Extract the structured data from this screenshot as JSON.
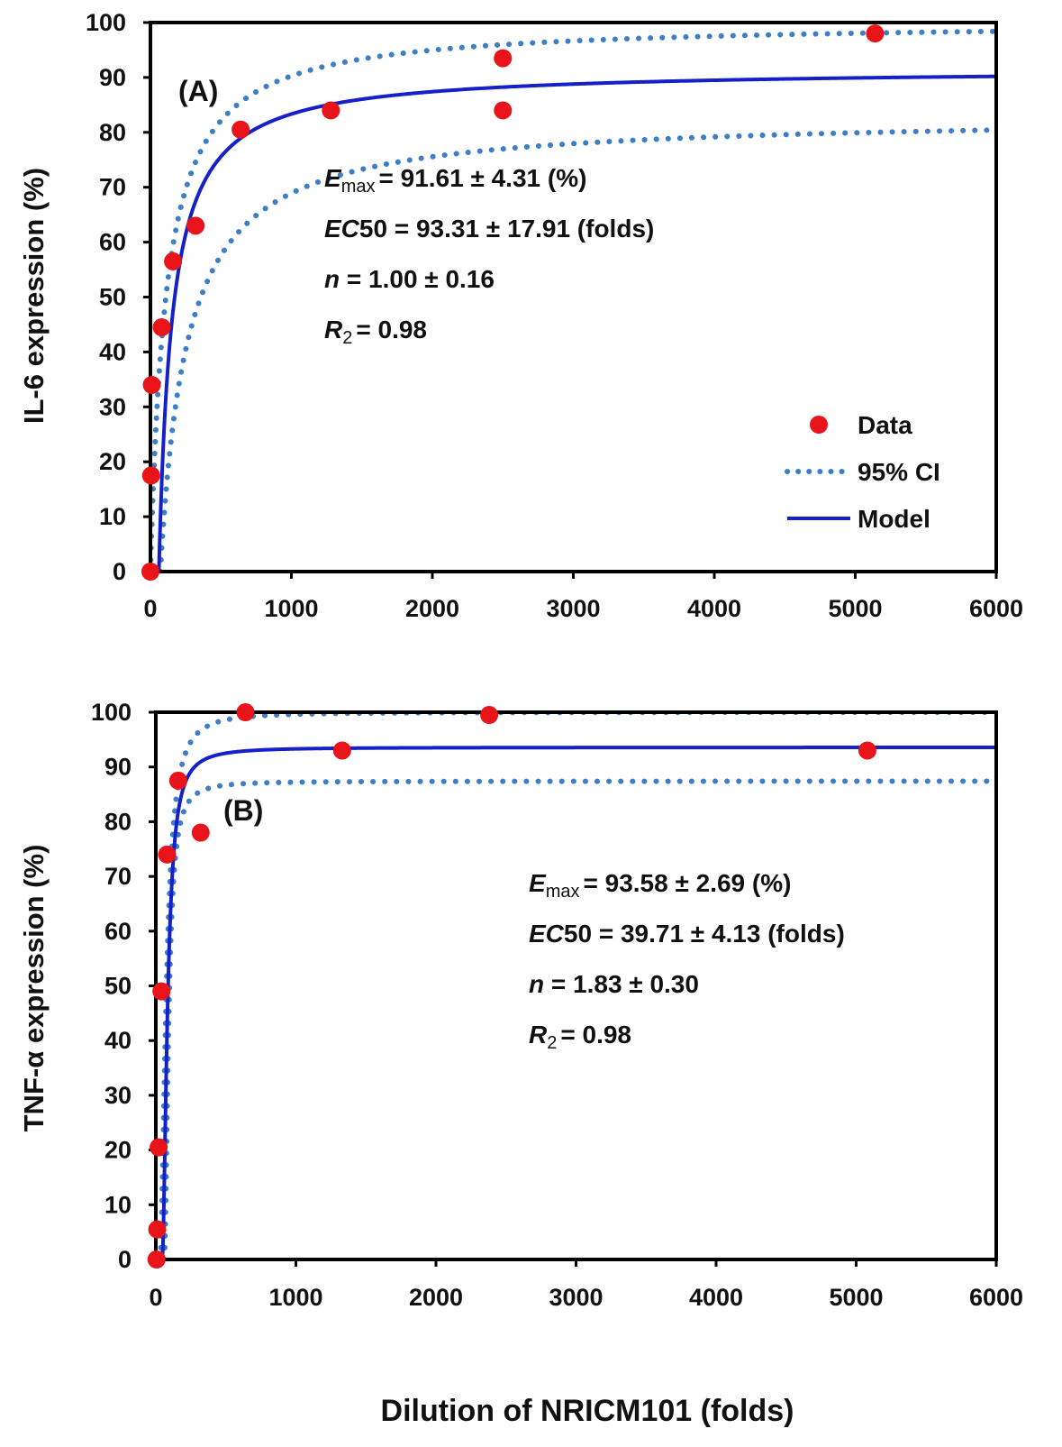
{
  "figure": {
    "shared_xlabel": "Dilution of NRICM101 (folds)"
  },
  "chart_data": [
    {
      "type": "scatter",
      "panel_label": "(A)",
      "ylabel": "IL-6 expression (%)",
      "xlim": [
        0,
        6000
      ],
      "ylim": [
        0,
        100
      ],
      "xticks": [
        0,
        1000,
        2000,
        3000,
        4000,
        5000,
        6000
      ],
      "yticks": [
        0,
        10,
        20,
        30,
        40,
        50,
        60,
        70,
        80,
        90,
        100
      ],
      "grid": false,
      "legend": {
        "position": "bottom-right",
        "items": [
          {
            "label": "Data",
            "kind": "marker"
          },
          {
            "label": "95% CI",
            "kind": "dotted"
          },
          {
            "label": "Model",
            "kind": "solid"
          }
        ]
      },
      "colors": {
        "data": "#e8141a",
        "model": "#1520c8",
        "ci": "#3d7ec7"
      },
      "series": [
        {
          "name": "Data",
          "x": [
            0,
            5,
            10,
            80,
            160,
            320,
            640,
            1280,
            2500,
            2500,
            5140
          ],
          "y": [
            0,
            17.5,
            34,
            44.5,
            56.5,
            63,
            80.5,
            84,
            84,
            93.5,
            98
          ]
        }
      ],
      "model": {
        "name": "Model",
        "emax": 91.61,
        "ec50": 93.31,
        "n": 1.0,
        "x0": 60
      },
      "ci_upper": {
        "name": "95% CI",
        "emax": 100.2,
        "ec50": 110,
        "n": 1.0,
        "x0": 0
      },
      "ci_lower": {
        "name": "95% CI",
        "emax": 83.0,
        "ec50": 190,
        "n": 1.0,
        "x0": 70
      },
      "annotations": [
        {
          "sym": "E",
          "sub": "max",
          "rest": "= 91.61 ± 4.31 (%)"
        },
        {
          "sym": "EC",
          "sub": "",
          "rest": "50 = 93.31 ± 17.91 (folds)"
        },
        {
          "sym": "n",
          "sub": "",
          "rest": " = 1.00 ± 0.16"
        },
        {
          "sym": "R",
          "sub": "2",
          "rest": "= 0.98"
        }
      ]
    },
    {
      "type": "scatter",
      "panel_label": "(B)",
      "ylabel": "TNF-α expression (%)",
      "xlim": [
        0,
        6000
      ],
      "ylim": [
        0,
        100
      ],
      "xticks": [
        0,
        1000,
        2000,
        3000,
        4000,
        5000,
        6000
      ],
      "yticks": [
        0,
        10,
        20,
        30,
        40,
        50,
        60,
        70,
        80,
        90,
        100
      ],
      "grid": false,
      "legend": null,
      "colors": {
        "data": "#e8141a",
        "model": "#1520c8",
        "ci": "#3d7ec7"
      },
      "series": [
        {
          "name": "Data",
          "x": [
            5,
            10,
            20,
            40,
            80,
            160,
            320,
            640,
            1330,
            2380,
            5080
          ],
          "y": [
            0,
            5.5,
            20.5,
            49,
            74,
            87.5,
            78,
            100,
            93,
            99.5,
            93
          ]
        }
      ],
      "model": {
        "name": "Model",
        "emax": 93.58,
        "ec50": 39.71,
        "n": 1.83,
        "x0": 45
      },
      "ci_upper": {
        "name": "95% CI",
        "emax": 100.0,
        "ec50": 46,
        "n": 1.83,
        "x0": 30
      },
      "ci_lower": {
        "name": "95% CI",
        "emax": 87.4,
        "ec50": 32,
        "n": 1.83,
        "x0": 60
      },
      "annotations": [
        {
          "sym": "E",
          "sub": "max",
          "rest": "= 93.58 ± 2.69 (%)"
        },
        {
          "sym": "EC",
          "sub": "",
          "rest": "50 = 39.71 ± 4.13 (folds)"
        },
        {
          "sym": "n",
          "sub": "",
          "rest": " = 1.83 ± 0.30"
        },
        {
          "sym": "R",
          "sub": "2",
          "rest": "= 0.98"
        }
      ]
    }
  ]
}
